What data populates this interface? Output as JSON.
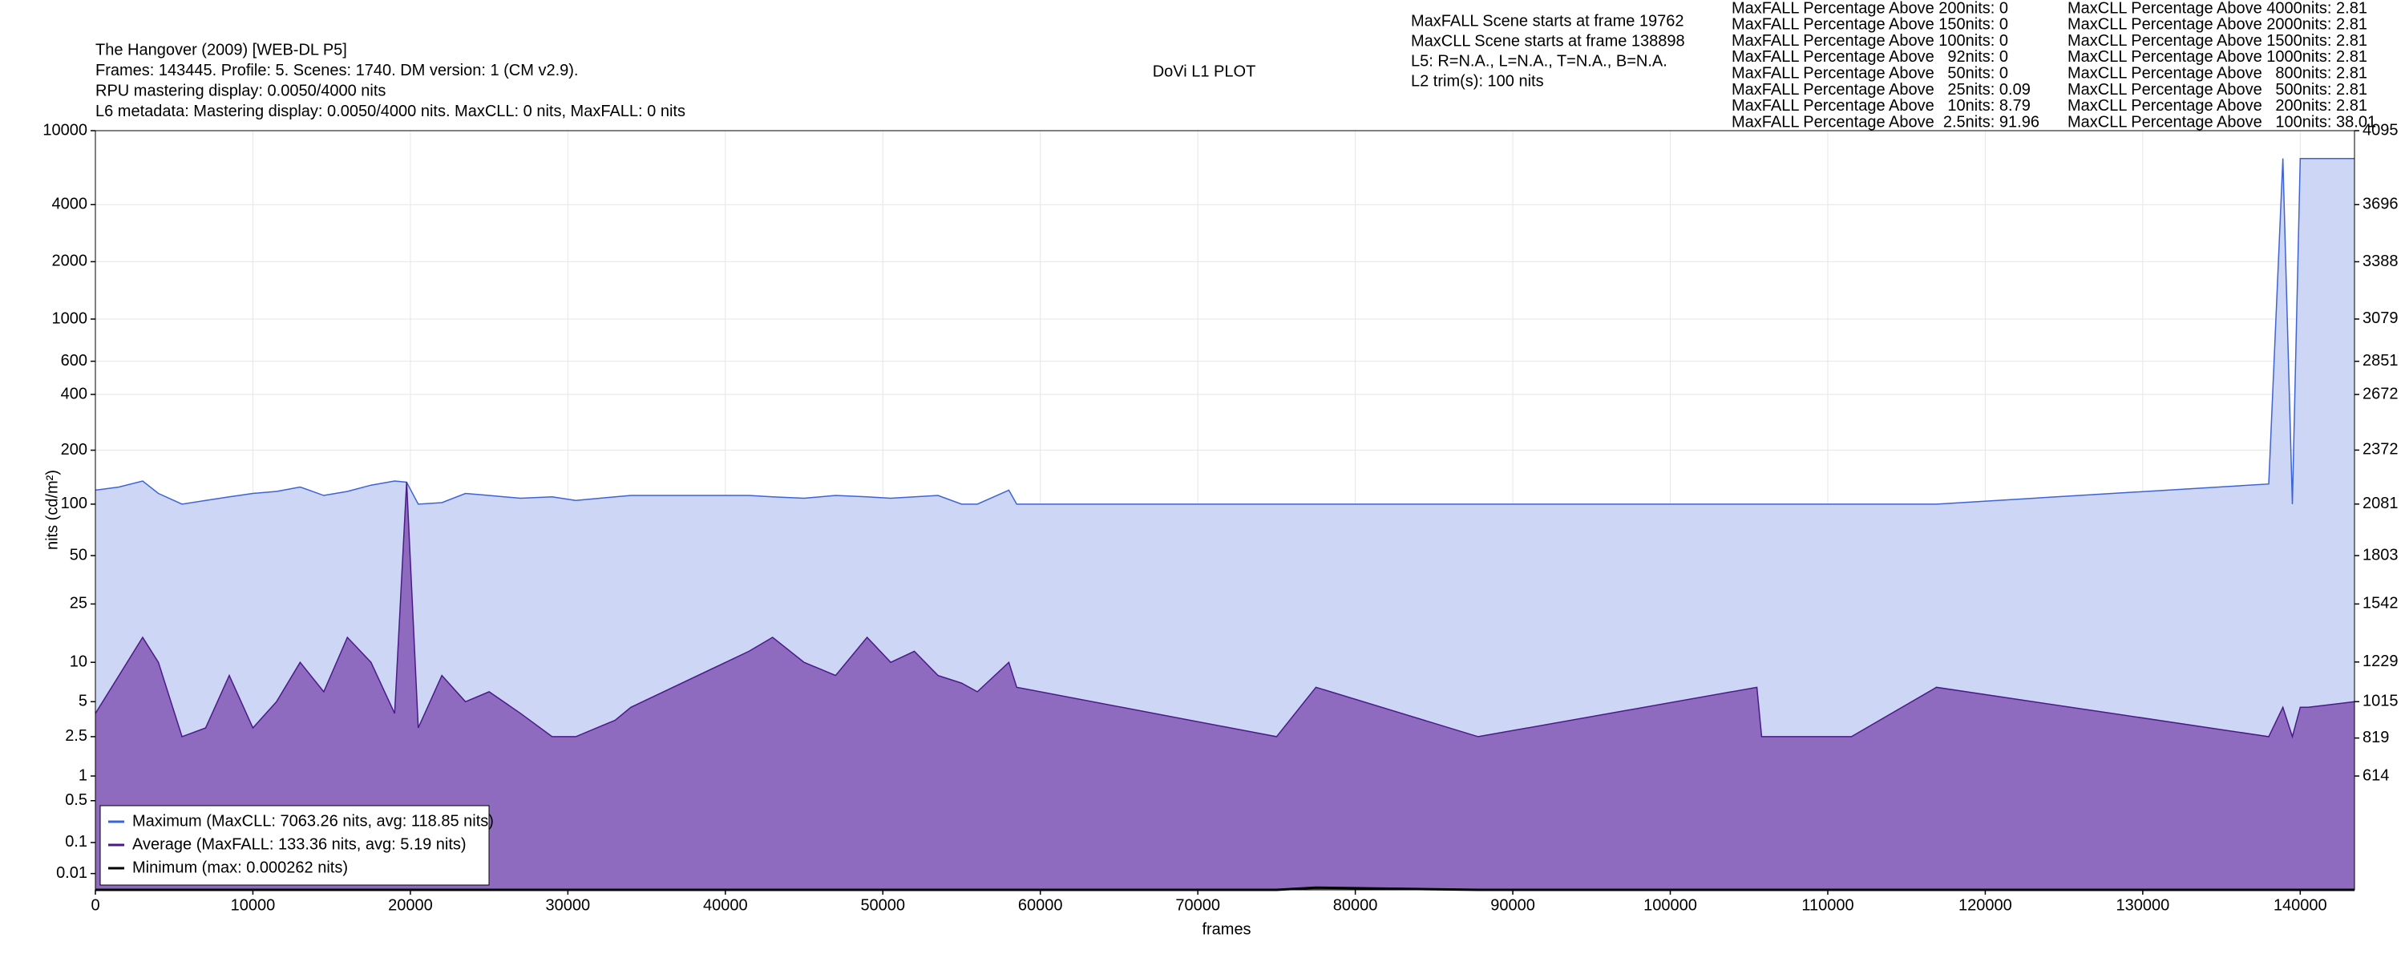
{
  "chart_data": {
    "type": "line",
    "title": "DoVi L1 PLOT",
    "info": [
      "The Hangover (2009) [WEB-DL P5]",
      "Frames: 143445. Profile: 5. Scenes: 1740. DM version: 1 (CM v2.9).",
      "RPU mastering display: 0.0050/4000 nits",
      "L6 metadata: Mastering display: 0.0050/4000 nits. MaxCLL: 0 nits, MaxFALL: 0 nits"
    ],
    "scene_info": [
      "MaxFALL Scene starts at frame 19762",
      "MaxCLL Scene starts at frame 138898",
      "L5: R=N.A., L=N.A., T=N.A., B=N.A.",
      "L2 trim(s): 100 nits"
    ],
    "maxfall_stats": [
      "MaxFALL Percentage Above 200nits: 0",
      "MaxFALL Percentage Above 150nits: 0",
      "MaxFALL Percentage Above 100nits: 0",
      "MaxFALL Percentage Above   92nits: 0",
      "MaxFALL Percentage Above   50nits: 0",
      "MaxFALL Percentage Above   25nits: 0.09",
      "MaxFALL Percentage Above   10nits: 8.79",
      "MaxFALL Percentage Above  2.5nits: 91.96"
    ],
    "maxcll_stats": [
      "MaxCLL Percentage Above 4000nits: 2.81",
      "MaxCLL Percentage Above 2000nits: 2.81",
      "MaxCLL Percentage Above 1500nits: 2.81",
      "MaxCLL Percentage Above 1000nits: 2.81",
      "MaxCLL Percentage Above   800nits: 2.81",
      "MaxCLL Percentage Above   500nits: 2.81",
      "MaxCLL Percentage Above   200nits: 2.81",
      "MaxCLL Percentage Above   100nits: 38.01"
    ],
    "xlabel": "frames",
    "ylabel": "nits (cd/m²)",
    "yscale": "pq",
    "grid": true,
    "legend": "lower left",
    "xlim": [
      0,
      143445
    ],
    "xticks": [
      0,
      10000,
      20000,
      30000,
      40000,
      50000,
      60000,
      70000,
      80000,
      90000,
      100000,
      110000,
      120000,
      130000,
      140000
    ],
    "ylim": [
      0,
      10000
    ],
    "yticks": [
      0.01,
      0.1,
      0.5,
      1,
      2.5,
      5,
      10,
      25,
      50,
      100,
      200,
      400,
      600,
      1000,
      2000,
      4000,
      10000
    ],
    "y2lim": [
      0,
      4095
    ],
    "y2ticks": [
      614,
      819,
      1015,
      1229,
      1542,
      1803,
      2081,
      2372,
      2672,
      2851,
      3079,
      3388,
      3696,
      4095
    ],
    "x": [
      0,
      1500,
      3000,
      4000,
      5500,
      7000,
      8500,
      10000,
      11500,
      13000,
      14500,
      16000,
      17500,
      19000,
      19762,
      20500,
      22000,
      23500,
      25000,
      27000,
      29000,
      30500,
      33000,
      34000,
      41500,
      43000,
      45000,
      47000,
      49000,
      50500,
      52000,
      53500,
      55000,
      56000,
      58000,
      58500,
      75000,
      77500,
      87800,
      105500,
      105800,
      111500,
      116900,
      138000,
      138898,
      139500,
      140000,
      140500,
      143445
    ],
    "series": [
      {
        "name": "Maximum (MaxCLL: 7063.26 nits, avg: 118.85 nits)",
        "color": "#3d63d6",
        "fill": "#cdd6f5",
        "values": [
          120,
          125,
          135,
          115,
          100,
          105,
          110,
          115,
          118,
          125,
          112,
          118,
          128,
          135,
          133,
          100,
          102,
          115,
          112,
          108,
          110,
          105,
          110,
          112,
          112,
          110,
          108,
          112,
          110,
          108,
          110,
          112,
          100,
          100,
          120,
          100,
          100,
          100,
          100,
          100,
          100,
          100,
          100,
          130,
          7063.26,
          100,
          7063.26,
          7063.26,
          7063.26
        ]
      },
      {
        "name": "Average (MaxFALL: 133.36 nits, avg: 5.19 nits)",
        "color": "#4b1a8a",
        "fill": "#8e6bbf",
        "values": [
          4,
          8,
          15,
          10,
          2.5,
          3,
          8,
          3,
          5,
          10,
          6,
          15,
          10,
          4,
          133.36,
          3,
          8,
          5,
          6,
          4,
          2.5,
          2.5,
          3.5,
          4.5,
          12,
          15,
          10,
          8,
          15,
          10,
          12,
          8,
          7,
          6,
          10,
          6.5,
          2.5,
          6.5,
          2.5,
          6.5,
          2.5,
          2.5,
          6.5,
          2.5,
          4.5,
          2.5,
          4.5,
          4.5,
          5
        ]
      },
      {
        "name": "Minimum (max: 0.000262 nits)",
        "color": "#000000",
        "values": [
          0,
          0,
          0,
          0,
          0,
          0,
          0,
          0,
          0,
          0,
          0,
          0,
          0,
          0,
          0,
          0,
          0,
          0,
          0,
          0,
          0,
          0,
          0,
          0,
          0,
          0,
          0,
          0,
          0,
          0,
          0,
          0,
          0,
          0,
          0,
          0,
          0,
          0.000262,
          0,
          0,
          0,
          0,
          0,
          0,
          0,
          0,
          0,
          0,
          0
        ]
      }
    ]
  }
}
